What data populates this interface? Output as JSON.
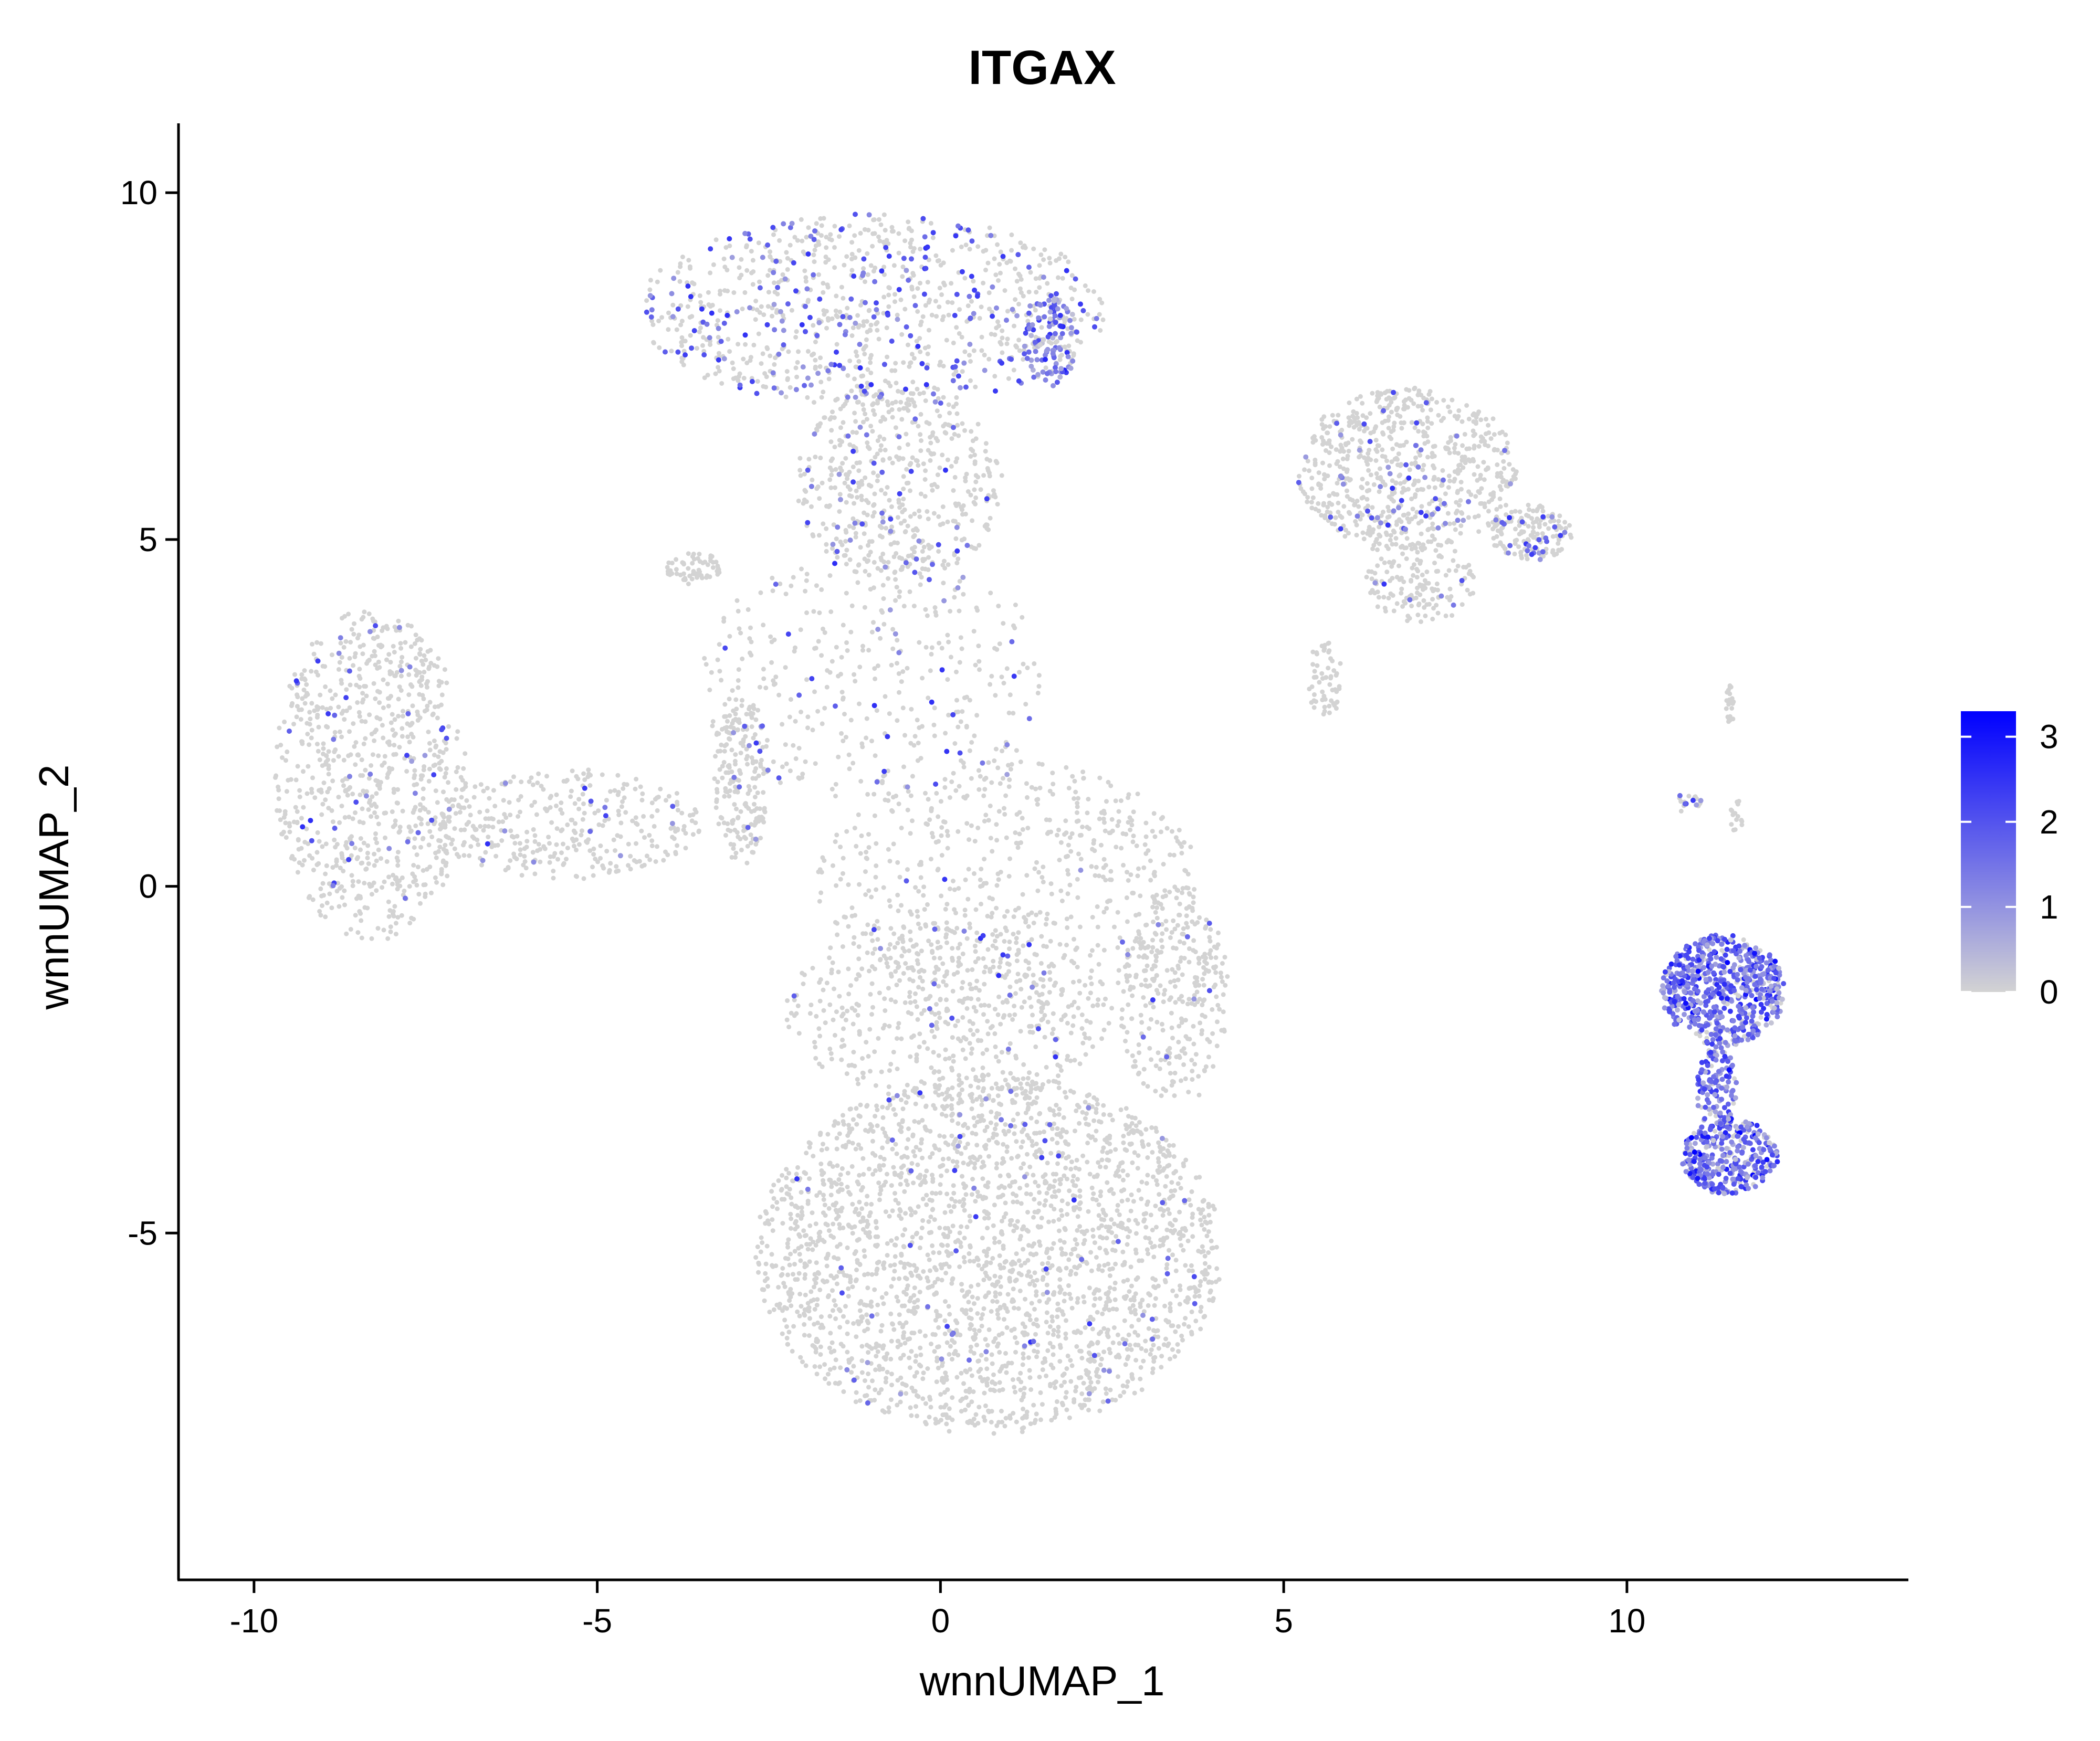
{
  "chart_data": {
    "type": "scatter",
    "title": "ITGAX",
    "xlabel": "wnnUMAP_1",
    "ylabel": "wnnUMAP_2",
    "xlim": [
      -11.1,
      14.1
    ],
    "ylim": [
      -10.0,
      11.0
    ],
    "xticks": [
      -10,
      -5,
      0,
      5,
      10
    ],
    "yticks": [
      -5,
      0,
      5,
      10
    ],
    "xtick_labels": [
      "-10",
      "-5",
      "0",
      "5",
      "10"
    ],
    "ytick_labels": [
      "-5",
      "0",
      "5",
      "10"
    ],
    "colorbar": {
      "min": 0,
      "max": 3.3,
      "ticks": [
        0,
        1,
        2,
        3
      ],
      "tick_labels": [
        "0",
        "1",
        "2",
        "3"
      ],
      "low_color": "#d3d3d3",
      "high_color": "#0000ff",
      "position": "right"
    },
    "grid": false,
    "clusters": [
      {
        "name_hidden": "",
        "cx": -1.0,
        "cy": 8.3,
        "rx": 3.4,
        "ry": 1.4,
        "n": 900,
        "expr_mean": 0.08
      },
      {
        "cx": 1.6,
        "cy": 7.9,
        "rx": 0.4,
        "ry": 0.7,
        "n": 120,
        "expr_mean": 1.2
      },
      {
        "cx": -0.6,
        "cy": 5.8,
        "rx": 1.5,
        "ry": 1.4,
        "n": 500,
        "expr_mean": 0.03
      },
      {
        "cx": -1.0,
        "cy": 3.0,
        "rx": 2.6,
        "ry": 1.8,
        "n": 350,
        "expr_mean": 0.03
      },
      {
        "cx": -3.6,
        "cy": 4.6,
        "rx": 0.4,
        "ry": 0.25,
        "n": 60,
        "expr_mean": 0.0
      },
      {
        "cx": -8.3,
        "cy": 1.6,
        "rx": 1.4,
        "ry": 2.4,
        "n": 800,
        "expr_mean": 0.02
      },
      {
        "cx": -5.5,
        "cy": 0.9,
        "rx": 2.0,
        "ry": 0.8,
        "n": 350,
        "expr_mean": 0.01
      },
      {
        "cx": -2.9,
        "cy": 1.6,
        "rx": 0.4,
        "ry": 1.3,
        "n": 200,
        "expr_mean": 0.02
      },
      {
        "cx": 1.0,
        "cy": 0.0,
        "rx": 2.8,
        "ry": 1.8,
        "n": 600,
        "expr_mean": 0.01
      },
      {
        "cx": 3.4,
        "cy": -1.6,
        "rx": 0.8,
        "ry": 1.6,
        "n": 300,
        "expr_mean": 0.01
      },
      {
        "cx": 0.7,
        "cy": -5.3,
        "rx": 3.4,
        "ry": 2.6,
        "n": 2500,
        "expr_mean": 0.01
      },
      {
        "cx": 0.1,
        "cy": -1.8,
        "rx": 2.4,
        "ry": 1.3,
        "n": 500,
        "expr_mean": 0.01
      },
      {
        "cx": 6.8,
        "cy": 6.0,
        "rx": 1.6,
        "ry": 1.2,
        "n": 700,
        "expr_mean": 0.03
      },
      {
        "cx": 8.6,
        "cy": 5.1,
        "rx": 0.6,
        "ry": 0.4,
        "n": 150,
        "expr_mean": 0.05
      },
      {
        "cx": 7.0,
        "cy": 4.4,
        "rx": 0.8,
        "ry": 0.6,
        "n": 150,
        "expr_mean": 0.02
      },
      {
        "cx": 5.6,
        "cy": 3.0,
        "rx": 0.25,
        "ry": 0.6,
        "n": 60,
        "expr_mean": 0.0
      },
      {
        "cx": 11.5,
        "cy": 2.6,
        "rx": 0.06,
        "ry": 0.3,
        "n": 25,
        "expr_mean": 0.0
      },
      {
        "cx": 10.9,
        "cy": 1.2,
        "rx": 0.2,
        "ry": 0.15,
        "n": 20,
        "expr_mean": 0.1
      },
      {
        "cx": 11.6,
        "cy": 1.0,
        "rx": 0.1,
        "ry": 0.25,
        "n": 15,
        "expr_mean": 0.0
      },
      {
        "cx": 11.4,
        "cy": -1.5,
        "rx": 0.9,
        "ry": 0.8,
        "n": 650,
        "expr_mean": 1.6
      },
      {
        "cx": 11.3,
        "cy": -2.9,
        "rx": 0.3,
        "ry": 0.6,
        "n": 120,
        "expr_mean": 1.5
      },
      {
        "cx": 11.5,
        "cy": -3.9,
        "rx": 0.7,
        "ry": 0.55,
        "n": 350,
        "expr_mean": 1.6
      }
    ]
  }
}
